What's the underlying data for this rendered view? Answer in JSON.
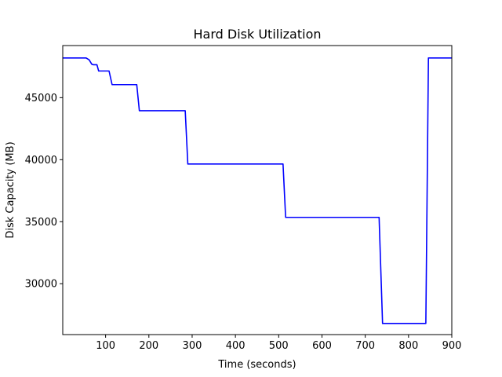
{
  "chart_data": {
    "type": "line",
    "title": "Hard Disk Utilization",
    "xlabel": "Time (seconds)",
    "ylabel": "Disk Capacity (MB)",
    "xlim": [
      1,
      900
    ],
    "ylim": [
      25900,
      49200
    ],
    "xticks": [
      100,
      200,
      300,
      400,
      500,
      600,
      700,
      800,
      900
    ],
    "yticks": [
      30000,
      35000,
      40000,
      45000
    ],
    "grid": false,
    "series_color": "#0000ff",
    "series": [
      {
        "x": [
          1,
          55,
          62,
          68,
          72,
          80,
          84,
          88,
          93,
          108,
          115,
          172,
          178,
          284,
          290,
          510,
          516,
          732,
          740,
          840,
          846,
          900
        ],
        "y": [
          48200,
          48200,
          48050,
          47700,
          47650,
          47650,
          47150,
          47150,
          47150,
          47150,
          46050,
          46050,
          43950,
          43950,
          39650,
          39650,
          35350,
          35350,
          26800,
          26800,
          48200,
          48200
        ]
      }
    ]
  }
}
